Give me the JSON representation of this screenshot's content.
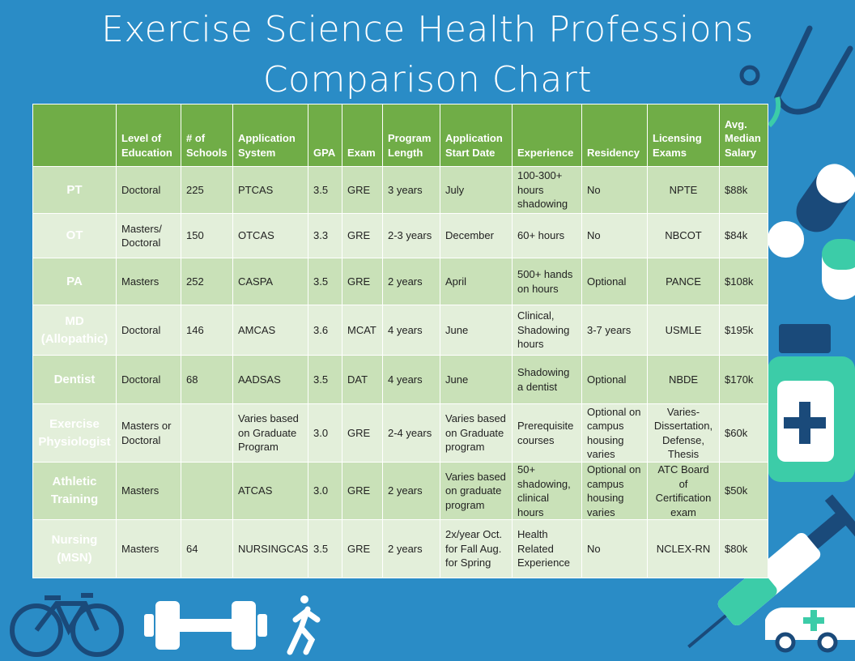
{
  "title": "Exercise Science Health Professions Comparison Chart",
  "table": {
    "header": [
      null,
      "Level of Education",
      "# of Schools",
      "Application System",
      "GPA",
      "Exam",
      "Program Length",
      "Application Start Date",
      "Experience",
      "Residency",
      "Licensing Exams",
      "Avg. Median Salary"
    ],
    "rows": [
      [
        "PT",
        "Doctoral",
        "225",
        "PTCAS",
        "3.5",
        "GRE",
        "3 years",
        "July",
        "100-300+ hours shadowing",
        "No",
        "NPTE",
        "$88k"
      ],
      [
        "OT",
        "Masters/ Doctoral",
        "150",
        "OTCAS",
        "3.3",
        "GRE",
        "2-3 years",
        "December",
        "60+ hours",
        "No",
        "NBCOT",
        "$84k"
      ],
      [
        "PA",
        "Masters",
        "252",
        "CASPA",
        "3.5",
        "GRE",
        "2 years",
        "April",
        "500+ hands on hours",
        "Optional",
        "PANCE",
        "$108k"
      ],
      [
        "MD (Allopathic)",
        "Doctoral",
        "146",
        "AMCAS",
        "3.6",
        "MCAT",
        "4 years",
        "June",
        "Clinical, Shadowing hours",
        "3-7 years",
        "USMLE",
        "$195k"
      ],
      [
        "Dentist",
        "Doctoral",
        "68",
        "AADSAS",
        "3.5",
        "DAT",
        "4 years",
        "June",
        "Shadowing a dentist",
        "Optional",
        "NBDE",
        "$170k"
      ],
      [
        "Exercise Physiologist",
        "Masters or Doctoral",
        null,
        "Varies based on Graduate Program",
        "3.0",
        "GRE",
        "2-4 years",
        "Varies based on Graduate program",
        "Prerequisite courses",
        "Optional on campus housing varies",
        "Varies- Dissertation, Defense, Thesis",
        "$60k"
      ],
      [
        "Athletic Training",
        "Masters",
        null,
        "ATCAS",
        "3.0",
        "GRE",
        "2 years",
        "Varies based on graduate program",
        "50+ shadowing, clinical hours",
        "Optional on campus housing varies",
        "ATC Board of Certification exam",
        "$50k"
      ],
      [
        "Nursing (MSN)",
        "Masters",
        "64",
        "NURSINGCAS",
        "3.5",
        "GRE",
        "2 years",
        "2x/year Oct. for Fall Aug. for Spring",
        "Health Related Experience",
        "No",
        "NCLEX-RN",
        "$80k"
      ]
    ]
  }
}
